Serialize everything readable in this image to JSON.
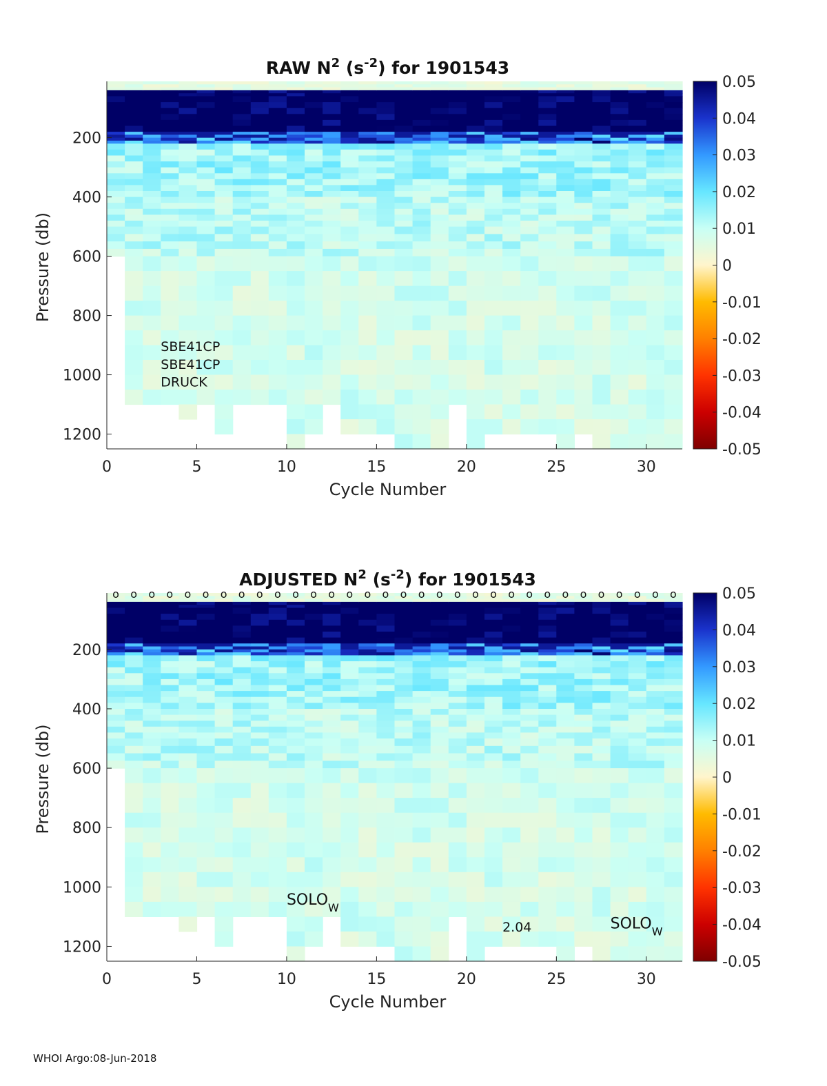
{
  "footer": "WHOI Argo:08-Jun-2018",
  "colormap": [
    "#7f0000",
    "#cc0000",
    "#ff3300",
    "#ff8000",
    "#ffbb00",
    "#fff5cc",
    "#c8fff5",
    "#66e6ff",
    "#3399ff",
    "#1a33cc",
    "#000066"
  ],
  "chart_data": [
    {
      "type": "heatmap",
      "title": "RAW N",
      "title_sup": "2",
      "title_unit": "(s",
      "title_unit_sup": "-2",
      "title_tail": ") for 1901543",
      "xlabel": "Cycle Number",
      "ylabel": "Pressure (db)",
      "xlim": [
        0,
        32
      ],
      "ylim": [
        1250,
        10
      ],
      "xticks": [
        0,
        5,
        10,
        15,
        20,
        25,
        30
      ],
      "yticks": [
        200,
        400,
        600,
        800,
        1000,
        1200
      ],
      "clim": [
        -0.05,
        0.05
      ],
      "cticks": [
        "0.05",
        "0.04",
        "0.03",
        "0.02",
        "0.01",
        "0",
        "-0.01",
        "-0.02",
        "-0.03",
        "-0.04",
        "-0.05"
      ],
      "annotations": [
        {
          "text": "SBE41CP",
          "x": 3,
          "y": 920
        },
        {
          "text": "SBE41CP",
          "x": 3,
          "y": 980
        },
        {
          "text": "DRUCK",
          "x": 3,
          "y": 1040
        }
      ],
      "markers": []
    },
    {
      "type": "heatmap",
      "title": "ADJUSTED N",
      "title_sup": "2",
      "title_unit": "(s",
      "title_unit_sup": "-2",
      "title_tail": ") for 1901543",
      "xlabel": "Cycle Number",
      "ylabel": "Pressure (db)",
      "xlim": [
        0,
        32
      ],
      "ylim": [
        1250,
        10
      ],
      "xticks": [
        0,
        5,
        10,
        15,
        20,
        25,
        30
      ],
      "yticks": [
        200,
        400,
        600,
        800,
        1000,
        1200
      ],
      "clim": [
        -0.05,
        0.05
      ],
      "cticks": [
        "0.05",
        "0.04",
        "0.03",
        "0.02",
        "0.01",
        "0",
        "-0.01",
        "-0.02",
        "-0.03",
        "-0.04",
        "-0.05"
      ],
      "annotations": [
        {
          "text": "SOLO",
          "sub": "W",
          "x": 10,
          "y": 1060
        },
        {
          "text": "2.04",
          "x": 22,
          "y": 1150
        },
        {
          "text": "SOLO",
          "sub": "W",
          "x": 28,
          "y": 1140
        }
      ],
      "markers": [
        {
          "symbol": "o",
          "y": 10,
          "x": [
            1,
            2,
            3,
            4,
            5,
            6,
            7,
            8,
            9,
            10,
            11,
            12,
            13,
            14,
            15,
            16,
            17,
            18,
            19,
            20,
            21,
            22,
            23,
            24,
            25,
            26,
            27,
            28,
            29,
            30,
            31,
            32
          ]
        }
      ]
    }
  ],
  "profile": {
    "pressure_bins": [
      10,
      20,
      30,
      40,
      50,
      60,
      80,
      100,
      120,
      140,
      160,
      180,
      190,
      200,
      210,
      220,
      240,
      260,
      280,
      300,
      320,
      340,
      360,
      380,
      400,
      420,
      440,
      460,
      480,
      500,
      525,
      550,
      575,
      600,
      650,
      700,
      750,
      800,
      850,
      900,
      950,
      1000,
      1050,
      1100,
      1150,
      1200,
      1250
    ],
    "bottom_pressure": [
      600,
      1100,
      1100,
      1100,
      1150,
      1100,
      1200,
      1100,
      1100,
      1100,
      1250,
      1200,
      1100,
      1200,
      1200,
      1200,
      1250,
      1250,
      1250,
      1100,
      1250,
      1200,
      1200,
      1200,
      1200,
      1250,
      1200,
      1250,
      1250,
      1250,
      1250,
      1250
    ]
  }
}
